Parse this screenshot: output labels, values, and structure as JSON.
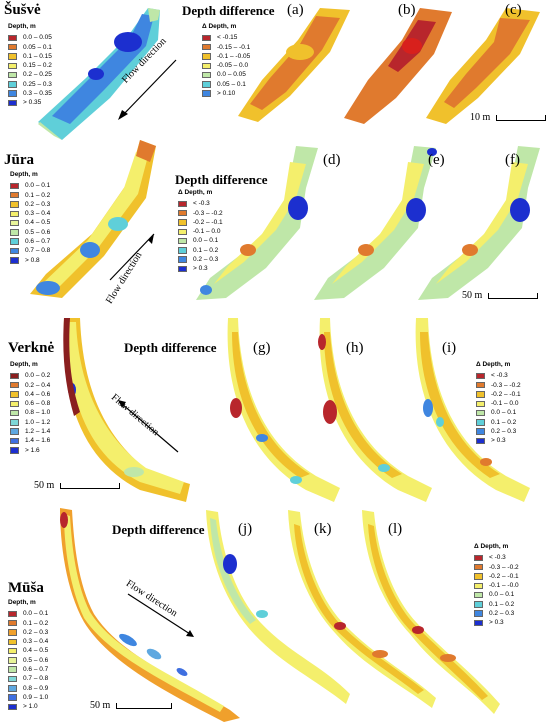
{
  "rivers": [
    {
      "name": "Šušvė",
      "depth_legend": {
        "title": "Depth, m",
        "items": [
          {
            "label": "0.0 – 0.05",
            "color": "#b8262c"
          },
          {
            "label": "0.05 – 0.1",
            "color": "#e07a2e"
          },
          {
            "label": "0.1 – 0.15",
            "color": "#f0c12c"
          },
          {
            "label": "0.15 – 0.2",
            "color": "#f4ef6c"
          },
          {
            "label": "0.2 – 0.25",
            "color": "#bfe7a8"
          },
          {
            "label": "0.25 – 0.3",
            "color": "#5fcfd9"
          },
          {
            "label": "0.3 – 0.35",
            "color": "#3f86e0"
          },
          {
            "label": "> 0.35",
            "color": "#1c2fcf"
          }
        ]
      },
      "flow_label": "Flow direction",
      "dd_title": "Depth difference",
      "diff_legend": {
        "title": "Δ Depth, m",
        "items": [
          {
            "label": "< -0.15",
            "color": "#b8262c"
          },
          {
            "label": "-0.15 – -0.1",
            "color": "#e07a2e"
          },
          {
            "label": "-0.1 – -0.05",
            "color": "#f0c12c"
          },
          {
            "label": "-0.05 – 0.0",
            "color": "#f4ef6c"
          },
          {
            "label": "0.0 – 0.05",
            "color": "#bfe7a8"
          },
          {
            "label": "0.05 – 0.1",
            "color": "#5fcfd9"
          },
          {
            "label": "> 0.10",
            "color": "#3f86e0"
          }
        ]
      },
      "panels": [
        "(a)",
        "(b)",
        "(c)"
      ],
      "scale": "10 m"
    },
    {
      "name": "Jūra",
      "depth_legend": {
        "title": "Depth, m",
        "items": [
          {
            "label": "0.0 – 0.1",
            "color": "#b8262c"
          },
          {
            "label": "0.1 – 0.2",
            "color": "#e07a2e"
          },
          {
            "label": "0.2 – 0.3",
            "color": "#f0c12c"
          },
          {
            "label": "0.3 – 0.4",
            "color": "#f4ef6c"
          },
          {
            "label": "0.4 – 0.5",
            "color": "#e8f49a"
          },
          {
            "label": "0.5 – 0.6",
            "color": "#bfe7a8"
          },
          {
            "label": "0.6 – 0.7",
            "color": "#5fcfd9"
          },
          {
            "label": "0.7 – 0.8",
            "color": "#3f86e0"
          },
          {
            "label": "> 0.8",
            "color": "#1c2fcf"
          }
        ]
      },
      "flow_label": "Flow direction",
      "dd_title": "Depth difference",
      "diff_legend": {
        "title": "Δ Depth, m",
        "items": [
          {
            "label": "< -0.3",
            "color": "#b8262c"
          },
          {
            "label": "-0.3 – -0.2",
            "color": "#e07a2e"
          },
          {
            "label": "-0.2 – -0.1",
            "color": "#f0c12c"
          },
          {
            "label": "-0.1 – 0.0",
            "color": "#f4ef6c"
          },
          {
            "label": "0.0 – 0.1",
            "color": "#bfe7a8"
          },
          {
            "label": "0.1 – 0.2",
            "color": "#5fcfd9"
          },
          {
            "label": "0.2 – 0.3",
            "color": "#3f86e0"
          },
          {
            "label": "> 0.3",
            "color": "#1c2fcf"
          }
        ]
      },
      "panels": [
        "(d)",
        "(e)",
        "(f)"
      ],
      "scale": "50 m"
    },
    {
      "name": "Verknė",
      "depth_legend": {
        "title": "Depth, m",
        "items": [
          {
            "label": "0.0 – 0.2",
            "color": "#8a1f1f"
          },
          {
            "label": "0.2 – 0.4",
            "color": "#e07a2e"
          },
          {
            "label": "0.4 – 0.6",
            "color": "#f0c12c"
          },
          {
            "label": "0.6 – 0.8",
            "color": "#f4ef6c"
          },
          {
            "label": "0.8 – 1.0",
            "color": "#bfe7a8"
          },
          {
            "label": "1.0 – 1.2",
            "color": "#7fd8d8"
          },
          {
            "label": "1.2 – 1.4",
            "color": "#5fa8e0"
          },
          {
            "label": "1.4 – 1.6",
            "color": "#3f6fe0"
          },
          {
            "label": "> 1.6",
            "color": "#1c2fcf"
          }
        ]
      },
      "flow_label": "Flow direction",
      "dd_title": "Depth difference",
      "diff_legend": {
        "title": "Δ Depth, m",
        "items": [
          {
            "label": "< -0.3",
            "color": "#b8262c"
          },
          {
            "label": "-0.3 – -0.2",
            "color": "#e07a2e"
          },
          {
            "label": "-0.2 – -0.1",
            "color": "#f0c12c"
          },
          {
            "label": "-0.1 – 0.0",
            "color": "#f4ef6c"
          },
          {
            "label": "0.0 – 0.1",
            "color": "#bfe7a8"
          },
          {
            "label": "0.1 – 0.2",
            "color": "#5fcfd9"
          },
          {
            "label": "0.2 – 0.3",
            "color": "#3f86e0"
          },
          {
            "label": "> 0.3",
            "color": "#1c2fcf"
          }
        ]
      },
      "panels": [
        "(g)",
        "(h)",
        "(i)"
      ],
      "scale": "50 m"
    },
    {
      "name": "Mūša",
      "depth_legend": {
        "title": "Depth, m",
        "items": [
          {
            "label": "0.0 – 0.1",
            "color": "#b8262c"
          },
          {
            "label": "0.1 – 0.2",
            "color": "#e07a2e"
          },
          {
            "label": "0.2 – 0.3",
            "color": "#f0a02c"
          },
          {
            "label": "0.3 – 0.4",
            "color": "#f0c12c"
          },
          {
            "label": "0.4 – 0.5",
            "color": "#f4ef6c"
          },
          {
            "label": "0.5 – 0.6",
            "color": "#e8f49a"
          },
          {
            "label": "0.6 – 0.7",
            "color": "#bfe7a8"
          },
          {
            "label": "0.7 – 0.8",
            "color": "#7fd8d8"
          },
          {
            "label": "0.8 – 0.9",
            "color": "#5fa8e0"
          },
          {
            "label": "0.9 – 1.0",
            "color": "#3f6fe0"
          },
          {
            "label": "> 1.0",
            "color": "#1c2fcf"
          }
        ]
      },
      "flow_label": "Flow direction",
      "dd_title": "Depth difference",
      "diff_legend": {
        "title": "Δ Depth, m",
        "items": [
          {
            "label": "< -0.3",
            "color": "#b8262c"
          },
          {
            "label": "-0.3 – -0.2",
            "color": "#e07a2e"
          },
          {
            "label": "-0.2 – -0.1",
            "color": "#f0c12c"
          },
          {
            "label": "-0.1 – -0.0",
            "color": "#f4ef6c"
          },
          {
            "label": "0.0 – 0.1",
            "color": "#bfe7a8"
          },
          {
            "label": "0.1 – 0.2",
            "color": "#5fcfd9"
          },
          {
            "label": "0.2 – 0.3",
            "color": "#3f86e0"
          },
          {
            "label": "> 0.3",
            "color": "#1c2fcf"
          }
        ]
      },
      "panels": [
        "(j)",
        "(k)",
        "(l)"
      ],
      "scale": "50 m"
    }
  ]
}
